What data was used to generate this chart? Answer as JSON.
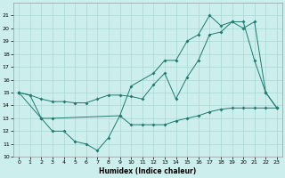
{
  "xlabel": "Humidex (Indice chaleur)",
  "xlim": [
    -0.5,
    23.5
  ],
  "ylim": [
    10,
    22
  ],
  "yticks": [
    10,
    11,
    12,
    13,
    14,
    15,
    16,
    17,
    18,
    19,
    20,
    21
  ],
  "xticks": [
    0,
    1,
    2,
    3,
    4,
    5,
    6,
    7,
    8,
    9,
    10,
    11,
    12,
    13,
    14,
    15,
    16,
    17,
    18,
    19,
    20,
    21,
    22,
    23
  ],
  "bg_color": "#cceeed",
  "line_color": "#1e7b6e",
  "grid_color": "#aad8d5",
  "line1_x": [
    0,
    1,
    2,
    3,
    4,
    5,
    6,
    7,
    8,
    9,
    10,
    11,
    12,
    13,
    14,
    15,
    16,
    17,
    18,
    19,
    20,
    21,
    22,
    23
  ],
  "line1_y": [
    15.0,
    14.8,
    13.0,
    12.0,
    12.0,
    11.2,
    11.0,
    10.5,
    11.5,
    13.2,
    12.5,
    12.5,
    12.5,
    12.5,
    12.8,
    13.0,
    13.2,
    13.5,
    13.7,
    13.8,
    13.8,
    13.8,
    13.8,
    13.8
  ],
  "line2_x": [
    0,
    1,
    2,
    3,
    4,
    5,
    6,
    7,
    8,
    9,
    10,
    11,
    12,
    13,
    14,
    15,
    16,
    17,
    18,
    19,
    20,
    21,
    22,
    23
  ],
  "line2_y": [
    15.0,
    14.8,
    14.5,
    14.3,
    14.3,
    14.2,
    14.2,
    14.5,
    14.8,
    14.8,
    14.7,
    14.5,
    15.6,
    16.5,
    14.5,
    16.2,
    17.5,
    19.5,
    19.7,
    20.5,
    20.5,
    17.5,
    15.0,
    13.8
  ],
  "line3_x": [
    0,
    2,
    3,
    9,
    10,
    12,
    13,
    14,
    15,
    16,
    17,
    18,
    19,
    20,
    21,
    22,
    23
  ],
  "line3_y": [
    15.0,
    13.0,
    13.0,
    13.2,
    15.5,
    16.5,
    17.5,
    17.5,
    19.0,
    19.5,
    21.0,
    20.2,
    20.5,
    20.0,
    20.5,
    15.0,
    13.8
  ],
  "markersize": 2.0
}
